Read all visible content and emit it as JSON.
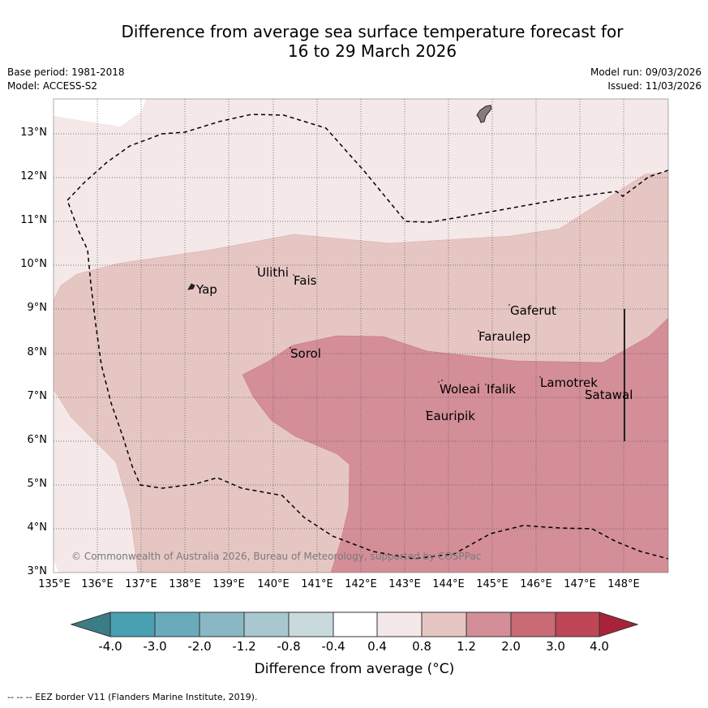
{
  "title": {
    "line1": "Difference from average sea surface temperature forecast for",
    "line2": "16 to 29 March 2026"
  },
  "meta": {
    "base_period": "Base period: 1981-2018",
    "model": "Model: ACCESS-S2",
    "model_run": "Model run: 09/03/2026",
    "issued": "Issued: 11/03/2026"
  },
  "axes": {
    "lat_labels": [
      "13°N",
      "12°N",
      "11°N",
      "10°N",
      "9°N",
      "8°N",
      "7°N",
      "6°N",
      "5°N",
      "4°N",
      "3°N"
    ],
    "lon_labels": [
      "135°E",
      "136°E",
      "137°E",
      "138°E",
      "139°E",
      "140°E",
      "141°E",
      "142°E",
      "143°E",
      "144°E",
      "145°E",
      "146°E",
      "147°E",
      "148°E"
    ]
  },
  "places": {
    "yap": "Yap",
    "ulithi": "Ulithi",
    "fais": "Fais",
    "sorol": "Sorol",
    "gaferut": "Gaferut",
    "faraulep": "Faraulep",
    "woleai": "Woleai",
    "ifalik": "Ifalik",
    "lamotrek": "Lamotrek",
    "satawal": "Satawal",
    "eauripik": "Eauripik"
  },
  "copyright": "© Commonwealth of Australia 2026, Bureau of Meteorology, supported by COSPPac",
  "colorbar": {
    "labels": [
      "-4.0",
      "-3.0",
      "-2.0",
      "-1.2",
      "-0.8",
      "-0.4",
      "0.4",
      "0.8",
      "1.2",
      "2.0",
      "3.0",
      "4.0"
    ],
    "colors": [
      "#3b7d86",
      "#48a0b0",
      "#6aabbb",
      "#89b7c3",
      "#a8c7ce",
      "#c9dadd",
      "#ffffff",
      "#f4e8e8",
      "#e6c6c3",
      "#d48e98",
      "#c96a75",
      "#bf4656",
      "#a9223a"
    ],
    "title": "Difference from average (°C)"
  },
  "legend": {
    "eez": "-- -- -- EEZ border V11 (Flanders Marine Institute, 2019)."
  }
}
